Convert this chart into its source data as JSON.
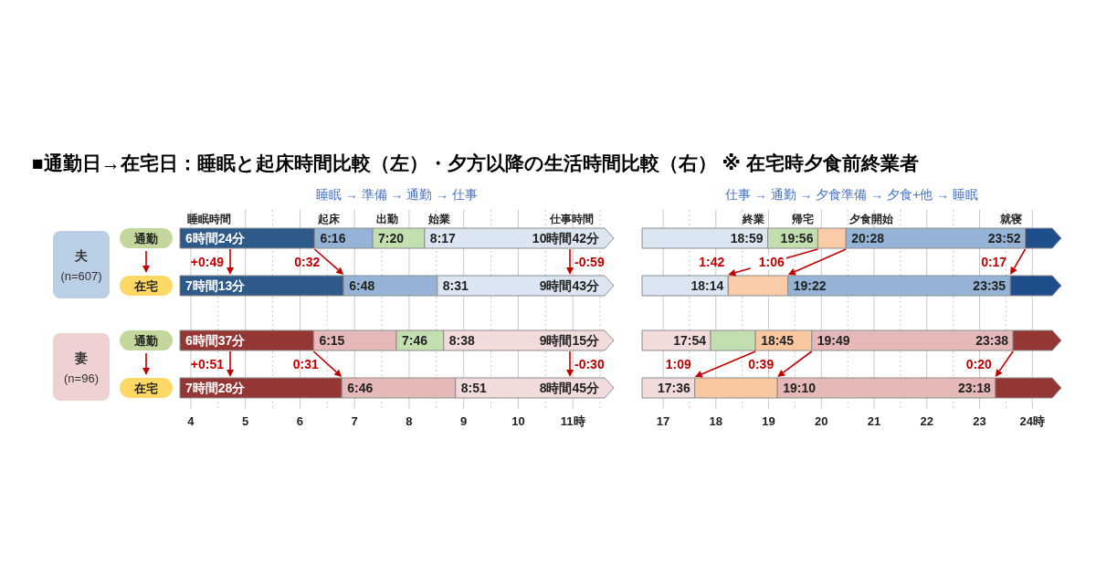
{
  "chart_data": [
    {
      "type": "bar",
      "orientation": "horizontal",
      "title": "■通勤日→在宅日：睡眠と起床時間比較（左）・夕方以降の生活時間比較（右） ※ 在宅時夕食前終業者",
      "subtitle": "睡眠 → 準備 → 通勤 → 仕事",
      "ylabel": "夫\n(n=607)",
      "categories": [
        "通勤",
        "在宅"
      ],
      "tick_labels": "y",
      "grid": "x",
      "series": [
        {
          "color": "#2e5a8a",
          "base": [
            3.8,
            3.8
          ],
          "values": [
            2.467,
            3.0
          ]
        },
        {
          "color": "#95b3d7",
          "base": [
            6.267,
            6.8
          ],
          "values": [
            1.066,
            1.717
          ]
        },
        {
          "color": "#c3dfb0",
          "base": [
            7.333,
            null
          ],
          "values": [
            0.95,
            null
          ]
        },
        {
          "color": "#dce6f2",
          "base": [
            8.283,
            8.517
          ],
          "values": [
            3.467,
            3.233
          ]
        }
      ],
      "xlim": [
        3.8,
        11.75
      ],
      "xticks": [
        4,
        4.5,
        5,
        5.5,
        6,
        6.5,
        7,
        7.5,
        8,
        8.5,
        9,
        9.5,
        10,
        10.5,
        11,
        11.5
      ],
      "annotations": [
        {
          "text": "6時間24分",
          "x": 3.8,
          "y": "通勤"
        },
        {
          "text": "6:16",
          "x": 6.267,
          "y": "通勤"
        },
        {
          "text": "7:20",
          "x": 7.333,
          "y": "通勤"
        },
        {
          "text": "8:17",
          "x": 8.283,
          "y": "通勤"
        },
        {
          "text": "10時間42分",
          "x": 11.75,
          "y": "通勤"
        },
        {
          "text": "7時間13分",
          "x": 3.8,
          "y": "在宅"
        },
        {
          "text": "6:48",
          "x": 6.8,
          "y": "在宅"
        },
        {
          "text": "8:31",
          "x": 8.517,
          "y": "在宅"
        },
        {
          "text": "9時間43分",
          "x": 11.75,
          "y": "在宅"
        },
        {
          "text": "睡眠時間",
          "x": 3.8,
          "y": "通勤"
        },
        {
          "text": "起床",
          "x": 6.267,
          "y": "通勤"
        },
        {
          "text": "出勤",
          "x": 7.333,
          "y": "通勤"
        },
        {
          "text": "始業",
          "x": 8.283,
          "y": "通勤"
        },
        {
          "text": "仕事時間",
          "x": 11.75,
          "y": "通勤"
        },
        {
          "text": "+0:49",
          "x": 3.8,
          "y": "在宅"
        },
        {
          "text": "0:32",
          "x": 6.8,
          "y": "在宅"
        },
        {
          "text": "-0:59",
          "x": 11.75,
          "y": "在宅"
        }
      ]
    },
    {
      "type": "bar",
      "orientation": "horizontal",
      "subtitle": "仕事 → 通勤 → 夕食準備 → 夕食+他 → 睡眠",
      "categories": [
        "通勤",
        "在宅"
      ],
      "tick_labels": false,
      "grid": "x",
      "series": [
        {
          "color": "#dce6f2",
          "base": [
            16.6,
            16.6
          ],
          "values": [
            2.383,
            1.633
          ]
        },
        {
          "color": "#c3dfb0",
          "base": [
            18.983,
            null
          ],
          "values": [
            0.95,
            null
          ]
        },
        {
          "color": "#f9cba6",
          "base": [
            19.933,
            18.233
          ],
          "values": [
            0.534,
            1.134
          ]
        },
        {
          "color": "#95b3d7",
          "base": [
            20.467,
            19.367
          ],
          "values": [
            3.4,
            4.216
          ]
        },
        {
          "color": "#1f4e8c",
          "base": [
            23.867,
            23.583
          ],
          "values": [
            0.683,
            0.967
          ]
        }
      ],
      "xlim": [
        16.6,
        24.55
      ],
      "xticks": [
        17,
        17.5,
        18,
        18.5,
        19,
        19.5,
        20,
        20.5,
        21,
        21.5,
        22,
        22.5,
        23,
        23.5,
        24
      ],
      "annotations": [
        {
          "text": "18:59",
          "x": 18.983,
          "y": "通勤"
        },
        {
          "text": "19:56",
          "x": 19.933,
          "y": "通勤"
        },
        {
          "text": "20:28",
          "x": 20.467,
          "y": "通勤"
        },
        {
          "text": "23:52",
          "x": 23.867,
          "y": "通勤"
        },
        {
          "text": "18:14",
          "x": 18.233,
          "y": "在宅"
        },
        {
          "text": "19:22",
          "x": 19.367,
          "y": "在宅"
        },
        {
          "text": "23:35",
          "x": 23.583,
          "y": "在宅"
        },
        {
          "text": "終業",
          "x": 18.983,
          "y": "通勤"
        },
        {
          "text": "帰宅",
          "x": 19.933,
          "y": "通勤"
        },
        {
          "text": "夕食開始",
          "x": 20.467,
          "y": "通勤"
        },
        {
          "text": "就寝",
          "x": 23.867,
          "y": "通勤"
        },
        {
          "text": "1:42",
          "x": 18.233,
          "y": "在宅"
        },
        {
          "text": "1:06",
          "x": 19.367,
          "y": "在宅"
        },
        {
          "text": "0:17",
          "x": 23.583,
          "y": "在宅"
        }
      ]
    },
    {
      "type": "bar",
      "orientation": "horizontal",
      "ylabel": "妻\n(n=96)",
      "categories": [
        "通勤",
        "在宅"
      ],
      "grid": "x",
      "series": [
        {
          "color": "#943634",
          "base": [
            3.8,
            3.8
          ],
          "values": [
            2.45,
            2.967
          ]
        },
        {
          "color": "#e6b9b8",
          "base": [
            6.25,
            6.767
          ],
          "values": [
            1.517,
            2.083
          ]
        },
        {
          "color": "#c3dfb0",
          "base": [
            7.767,
            null
          ],
          "values": [
            0.866,
            null
          ]
        },
        {
          "color": "#f2dcdb",
          "base": [
            8.633,
            8.85
          ],
          "values": [
            3.117,
            2.9
          ]
        }
      ],
      "xlim": [
        3.8,
        11.75
      ],
      "xticks": [
        4,
        {
          "value": 4.5,
          "label": null
        },
        5,
        {
          "value": 5.5,
          "label": null
        },
        6,
        {
          "value": 6.5,
          "label": null
        },
        7,
        {
          "value": 7.5,
          "label": null
        },
        8,
        {
          "value": 8.5,
          "label": null
        },
        9,
        {
          "value": 9.5,
          "label": null
        },
        10,
        {
          "value": 10.5,
          "label": null
        },
        {
          "value": 11,
          "label": "11時"
        },
        {
          "value": 11.5,
          "label": null
        }
      ],
      "annotations": [
        {
          "text": "6時間37分",
          "x": 3.8,
          "y": "通勤"
        },
        {
          "text": "6:15",
          "x": 6.25,
          "y": "通勤"
        },
        {
          "text": "7:46",
          "x": 7.767,
          "y": "通勤"
        },
        {
          "text": "8:38",
          "x": 8.633,
          "y": "通勤"
        },
        {
          "text": "9時間15分",
          "x": 11.75,
          "y": "通勤"
        },
        {
          "text": "7時間28分",
          "x": 3.8,
          "y": "在宅"
        },
        {
          "text": "6:46",
          "x": 6.767,
          "y": "在宅"
        },
        {
          "text": "8:51",
          "x": 8.85,
          "y": "在宅"
        },
        {
          "text": "8時間45分",
          "x": 11.75,
          "y": "在宅"
        },
        {
          "text": "+0:51",
          "x": 3.8,
          "y": "在宅"
        },
        {
          "text": "0:31",
          "x": 6.767,
          "y": "在宅"
        },
        {
          "text": "-0:30",
          "x": 11.75,
          "y": "在宅"
        }
      ]
    },
    {
      "type": "bar",
      "orientation": "horizontal",
      "categories": [
        "通勤",
        "在宅"
      ],
      "tick_labels": "x",
      "grid": "x",
      "series": [
        {
          "color": "#f2dcdb",
          "base": [
            16.6,
            16.6
          ],
          "values": [
            1.3,
            1.0
          ]
        },
        {
          "color": "#c3dfb0",
          "base": [
            17.9,
            null
          ],
          "values": [
            0.85,
            null
          ]
        },
        {
          "color": "#fac8a0",
          "base": [
            18.75,
            17.6
          ],
          "values": [
            1.067,
            1.567
          ]
        },
        {
          "color": "#e6b9b8",
          "base": [
            19.817,
            19.167
          ],
          "values": [
            3.816,
            4.133
          ]
        },
        {
          "color": "#943634",
          "base": [
            23.633,
            23.3
          ],
          "values": [
            0.917,
            1.25
          ]
        }
      ],
      "xlim": [
        16.6,
        24.55
      ],
      "xticks": [
        17,
        {
          "value": 17.5,
          "label": null
        },
        18,
        {
          "value": 18.5,
          "label": null
        },
        19,
        {
          "value": 19.5,
          "label": null
        },
        20,
        {
          "value": 20.5,
          "label": null
        },
        21,
        {
          "value": 21.5,
          "label": null
        },
        22,
        {
          "value": 22.5,
          "label": null
        },
        23,
        {
          "value": 23.5,
          "label": null
        },
        {
          "value": 24,
          "label": "24時"
        }
      ],
      "annotations": [
        {
          "text": "17:54",
          "x": 17.9,
          "y": "通勤"
        },
        {
          "text": "18:45",
          "x": 18.75,
          "y": "通勤"
        },
        {
          "text": "19:49",
          "x": 19.817,
          "y": "通勤"
        },
        {
          "text": "23:38",
          "x": 23.633,
          "y": "通勤"
        },
        {
          "text": "17:36",
          "x": 17.6,
          "y": "在宅"
        },
        {
          "text": "19:10",
          "x": 19.167,
          "y": "在宅"
        },
        {
          "text": "23:18",
          "x": 23.3,
          "y": "在宅"
        },
        {
          "text": "1:09",
          "x": 17.6,
          "y": "在宅"
        },
        {
          "text": "0:39",
          "x": 19.167,
          "y": "在宅"
        },
        {
          "text": "0:20",
          "x": 23.3,
          "y": "在宅"
        }
      ]
    }
  ]
}
